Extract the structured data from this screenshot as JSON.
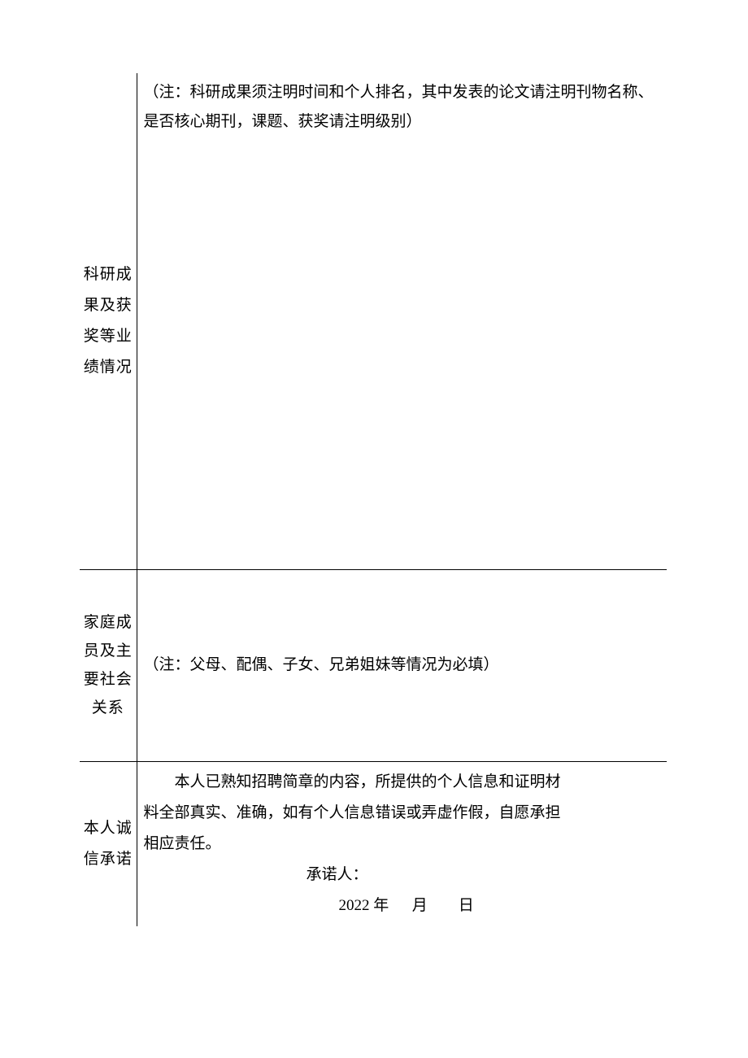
{
  "table": {
    "row1": {
      "label": "科研成果及获奖等业绩情况",
      "note": "（注：科研成果须注明时间和个人排名，其中发表的论文请注明刊物名称、是否核心期刊，课题、获奖请注明级别）"
    },
    "row2": {
      "label": "家庭成员及主要社会关系",
      "note": "（注：父母、配偶、子女、兄弟姐妹等情况为必填）"
    },
    "row3": {
      "label": "本人诚信承诺",
      "declaration": "本人已熟知招聘简章的内容，所提供的个人信息和证明材料全部真实、准确，如有个人信息错误或弄虚作假，自愿承担相应责任。",
      "signerLabel": "承诺人：",
      "year": "2022",
      "yearUnit": "年",
      "monthUnit": "月",
      "dayUnit": "日"
    }
  },
  "style": {
    "colors": {
      "background": "#ffffff",
      "text": "#000000",
      "border": "#000000"
    },
    "font": {
      "family": "SimSun",
      "sizeBody": 19,
      "lineHeight": 1.9
    },
    "columns": {
      "labelWidth": 70,
      "contentWidth": 652
    }
  }
}
